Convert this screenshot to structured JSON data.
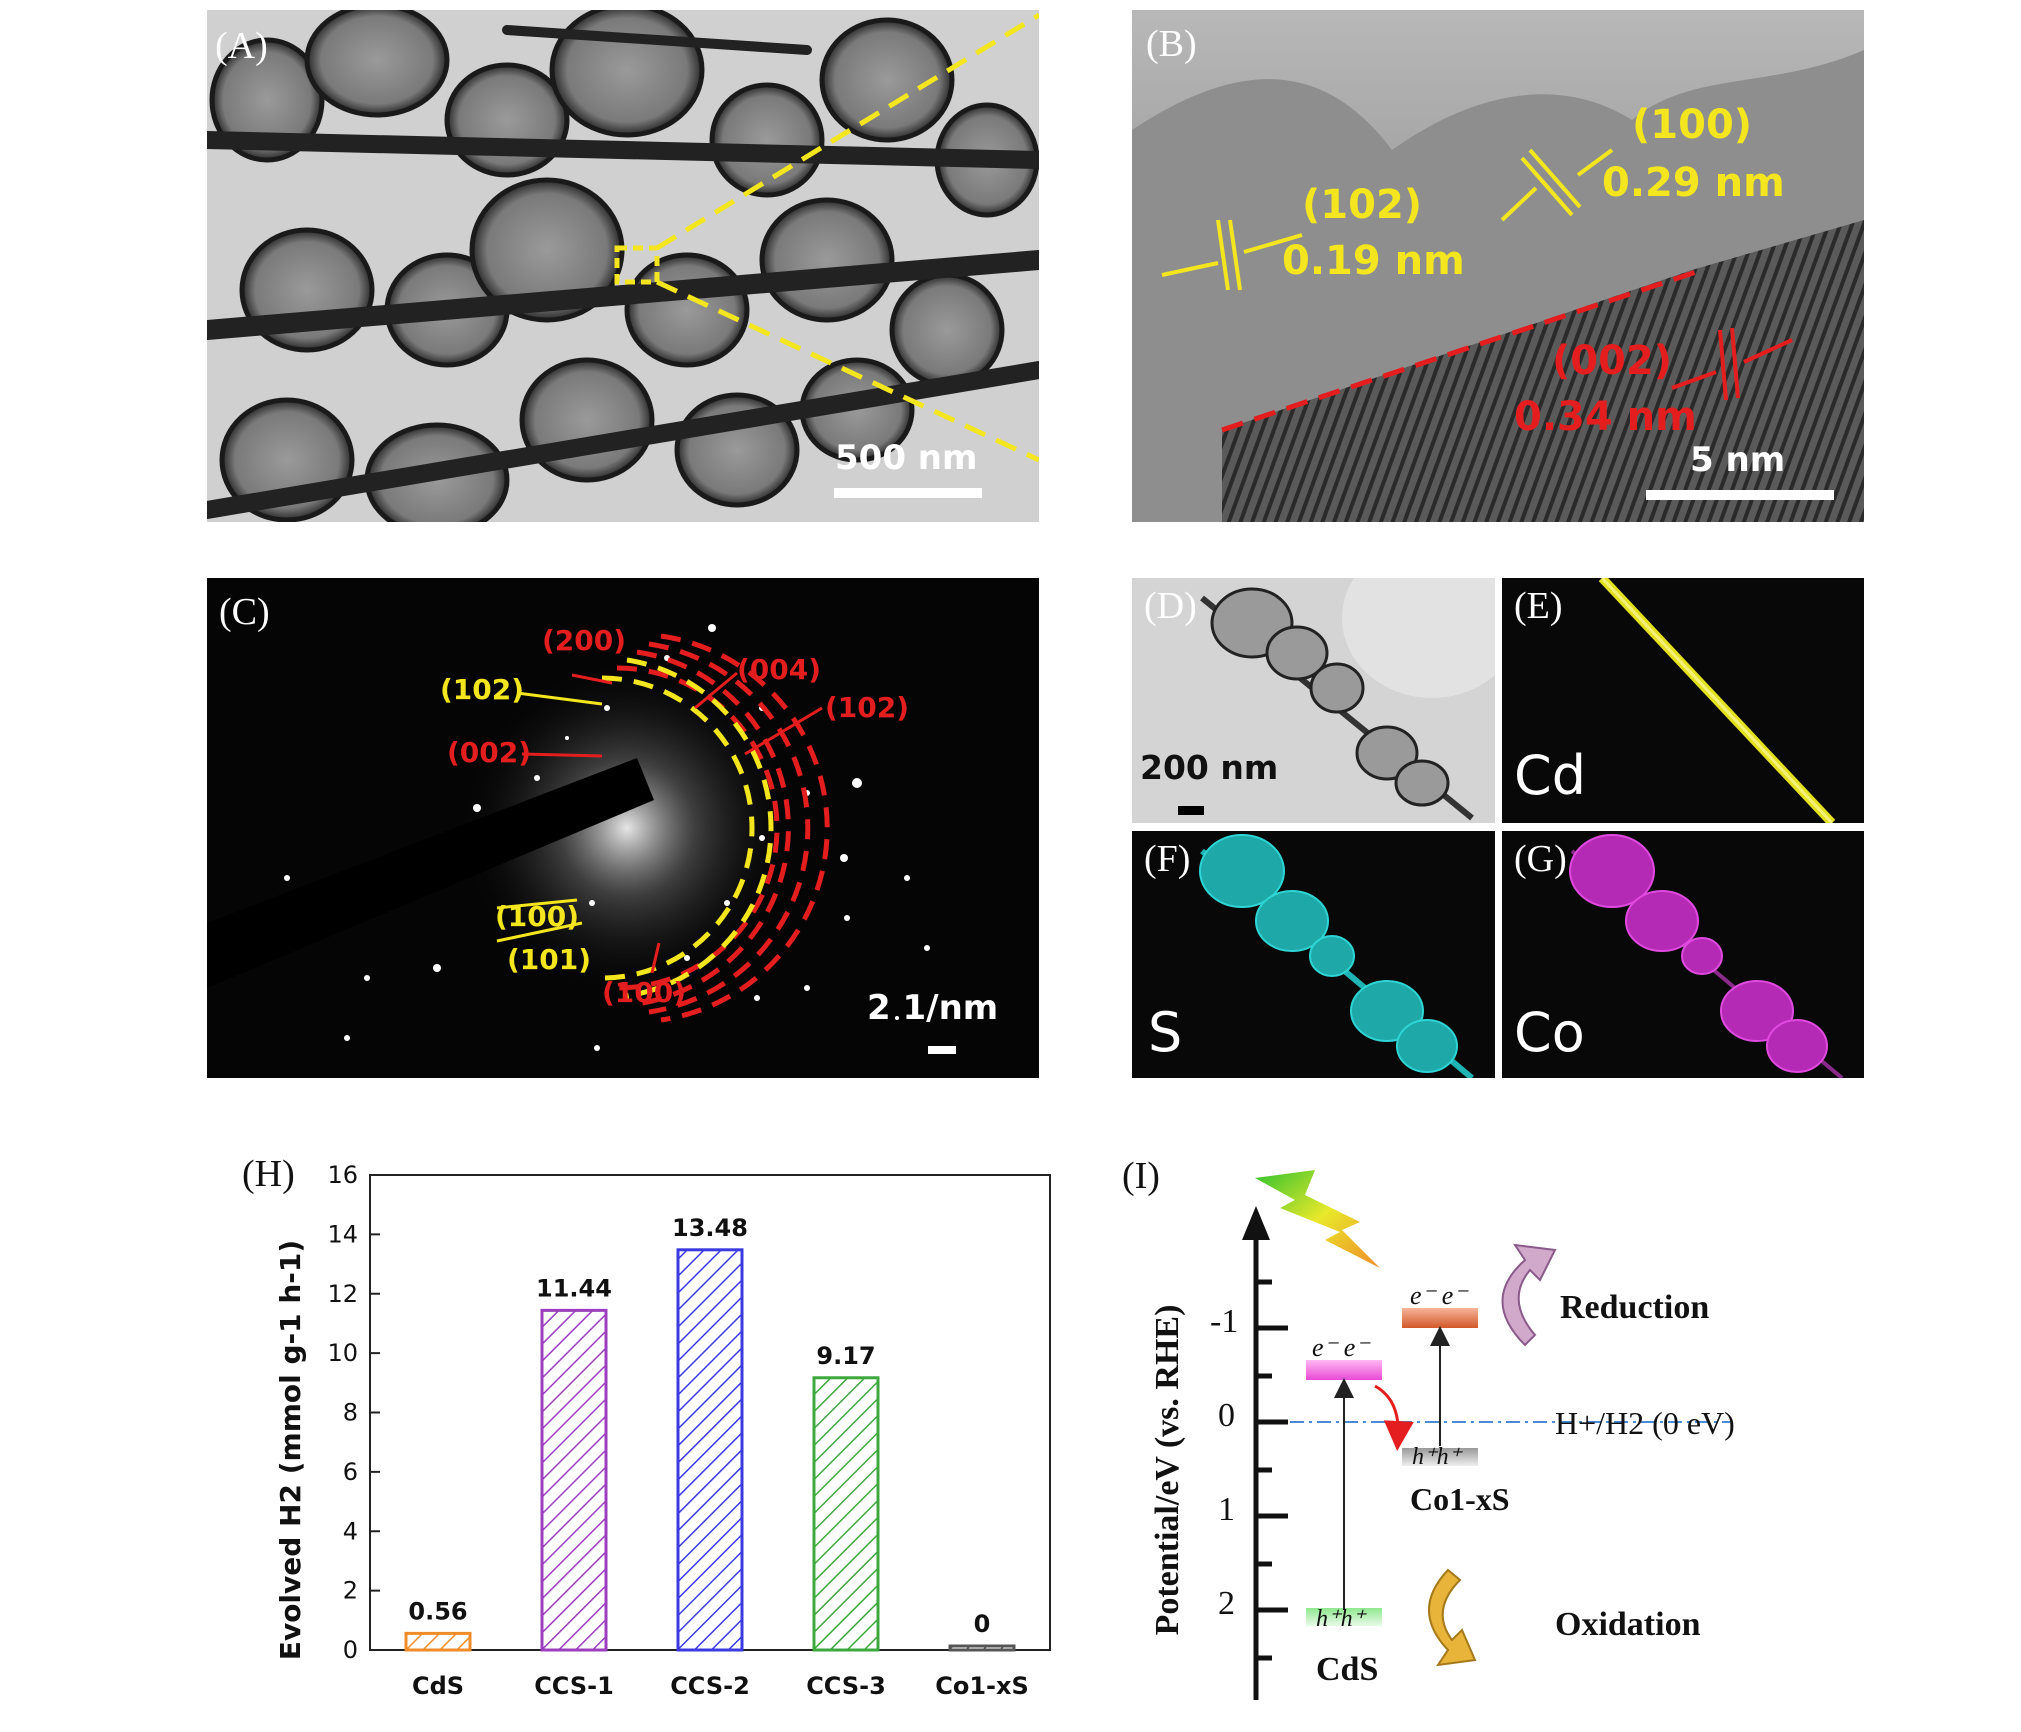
{
  "panel_a": {
    "label": "(A)",
    "scale_bar": "500 nm"
  },
  "panel_b": {
    "label": "(B)",
    "scale_bar": "5 nm",
    "fringes": [
      {
        "plane": "(102)",
        "spacing": "0.19 nm"
      },
      {
        "plane": "(100)",
        "spacing": "0.29 nm"
      },
      {
        "plane": "(002)",
        "spacing": "0.34 nm"
      }
    ]
  },
  "panel_c": {
    "label": "(C)",
    "scale_bar": "2 1/nm",
    "rings_yellow": [
      "(102)",
      "(100)",
      "(101)"
    ],
    "rings_red": [
      "(200)",
      "(004)",
      "(102)",
      "(002)",
      "(100)"
    ]
  },
  "panel_d": {
    "label": "(D)",
    "scale_bar": "200 nm"
  },
  "panel_e": {
    "label": "(E)",
    "element": "Cd"
  },
  "panel_f": {
    "label": "(F)",
    "element": "S"
  },
  "panel_g": {
    "label": "(G)",
    "element": "Co"
  },
  "panel_h": {
    "label": "(H)"
  },
  "chart_data": {
    "type": "bar",
    "categories": [
      "CdS",
      "CCS-1",
      "CCS-2",
      "CCS-3",
      "Co1-xS"
    ],
    "values": [
      0.56,
      11.44,
      13.48,
      9.17,
      0
    ],
    "value_labels": [
      "0.56",
      "11.44",
      "13.48",
      "9.17",
      "0"
    ],
    "ylabel": "Evolved H2 (mmol g-1 h-1)",
    "ylim": [
      0,
      16
    ],
    "yticks": [
      0,
      2,
      4,
      6,
      8,
      10,
      12,
      14,
      16
    ],
    "colors": [
      "#f08c28",
      "#9b3fbf",
      "#3a3ae0",
      "#3ea83e",
      "#555555"
    ]
  },
  "panel_i": {
    "label": "(I)",
    "ylabel": "Potential/eV (vs. RHE)",
    "ticks": [
      "-1",
      "0",
      "1",
      "2"
    ],
    "reference": "H+/H2 (0 eV)",
    "reduction": "Reduction",
    "oxidation": "Oxidation",
    "cds": "CdS",
    "co1xs": "Co1-xS",
    "electrons": "e⁻ e⁻",
    "holes": "h⁺h⁺"
  }
}
